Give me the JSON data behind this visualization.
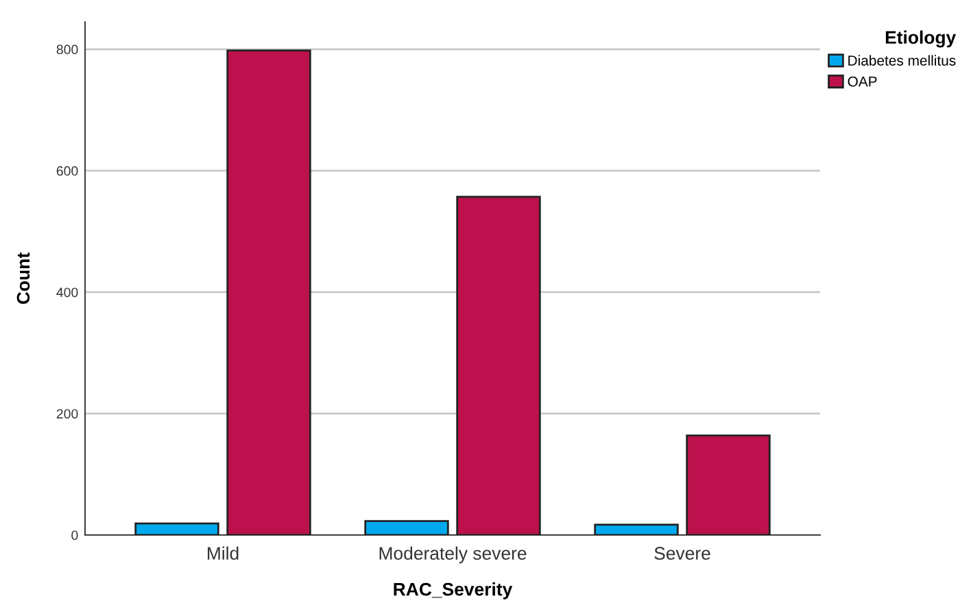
{
  "chart_data": {
    "type": "bar",
    "xlabel": "RAC_Severity",
    "ylabel": "Count",
    "legend_title": "Etiology",
    "categories": [
      "Mild",
      "Moderately severe",
      "Severe"
    ],
    "series": [
      {
        "name": "Diabetes mellitus",
        "color": "#00a9ee",
        "values": [
          19,
          23,
          17
        ]
      },
      {
        "name": "OAP",
        "color": "#bc114c",
        "values": [
          798,
          557,
          164
        ]
      }
    ],
    "ylim": [
      0,
      845
    ],
    "yticks": [
      0,
      200,
      400,
      600,
      800
    ],
    "grid": "y",
    "legend": "top right"
  }
}
